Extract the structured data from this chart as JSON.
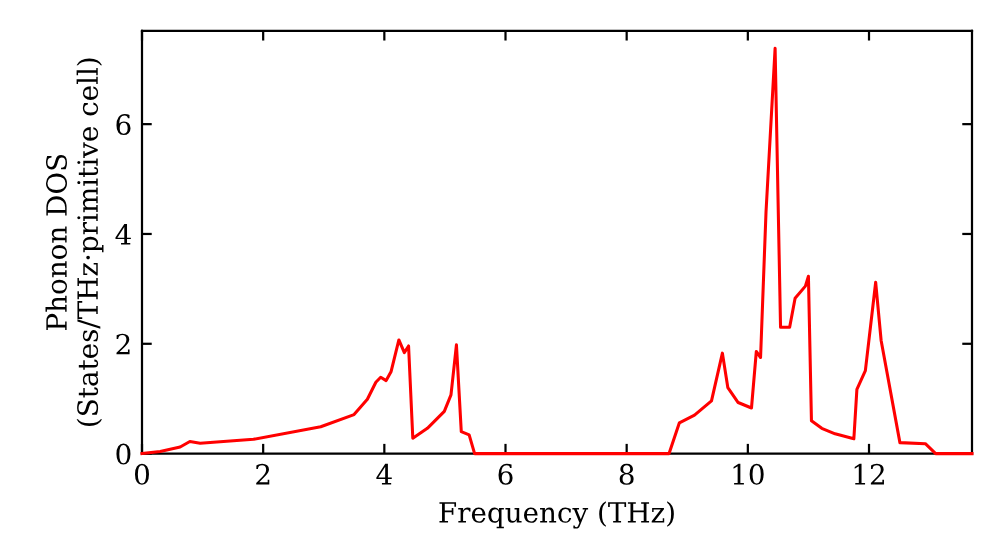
{
  "chart_data": {
    "type": "line",
    "xlabel": "Frequency (THz)",
    "ylabel": "Phonon DOS\n(States/THz·primitive cell)",
    "xlim": [
      0,
      13.7
    ],
    "ylim": [
      0,
      7.7
    ],
    "xticks": [
      0,
      2,
      4,
      6,
      8,
      10,
      12
    ],
    "yticks": [
      0,
      2,
      4,
      6
    ],
    "grid": false,
    "marker": "none",
    "line_style": "solid",
    "series": [
      {
        "color": "#ff0000",
        "x": [
          0,
          0.3,
          0.63,
          0.79,
          0.96,
          1.84,
          2.95,
          3.5,
          3.72,
          3.86,
          3.94,
          4.03,
          4.11,
          4.24,
          4.33,
          4.4,
          4.47,
          4.71,
          4.99,
          5.1,
          5.19,
          5.27,
          5.4,
          5.49,
          6.25,
          8.7,
          8.87,
          9.12,
          9.4,
          9.58,
          9.67,
          9.84,
          10.06,
          10.14,
          10.21,
          10.3,
          10.45,
          10.54,
          10.69,
          10.78,
          10.95,
          11.0,
          11.05,
          11.22,
          11.44,
          11.75,
          11.8,
          11.94,
          12.11,
          12.2,
          12.51,
          12.93,
          13.1,
          13.7
        ],
        "values": [
          0,
          0.04,
          0.12,
          0.22,
          0.19,
          0.26,
          0.49,
          0.71,
          0.99,
          1.3,
          1.39,
          1.33,
          1.49,
          2.07,
          1.84,
          1.96,
          0.28,
          0.46,
          0.77,
          1.07,
          1.98,
          0.4,
          0.34,
          0,
          0,
          0,
          0.56,
          0.7,
          0.96,
          1.83,
          1.2,
          0.93,
          0.83,
          1.86,
          1.75,
          4.4,
          7.38,
          2.3,
          2.3,
          2.83,
          3.05,
          3.23,
          0.6,
          0.46,
          0.36,
          0.27,
          1.17,
          1.51,
          3.12,
          2.06,
          0.2,
          0.18,
          0,
          0
        ]
      }
    ]
  }
}
